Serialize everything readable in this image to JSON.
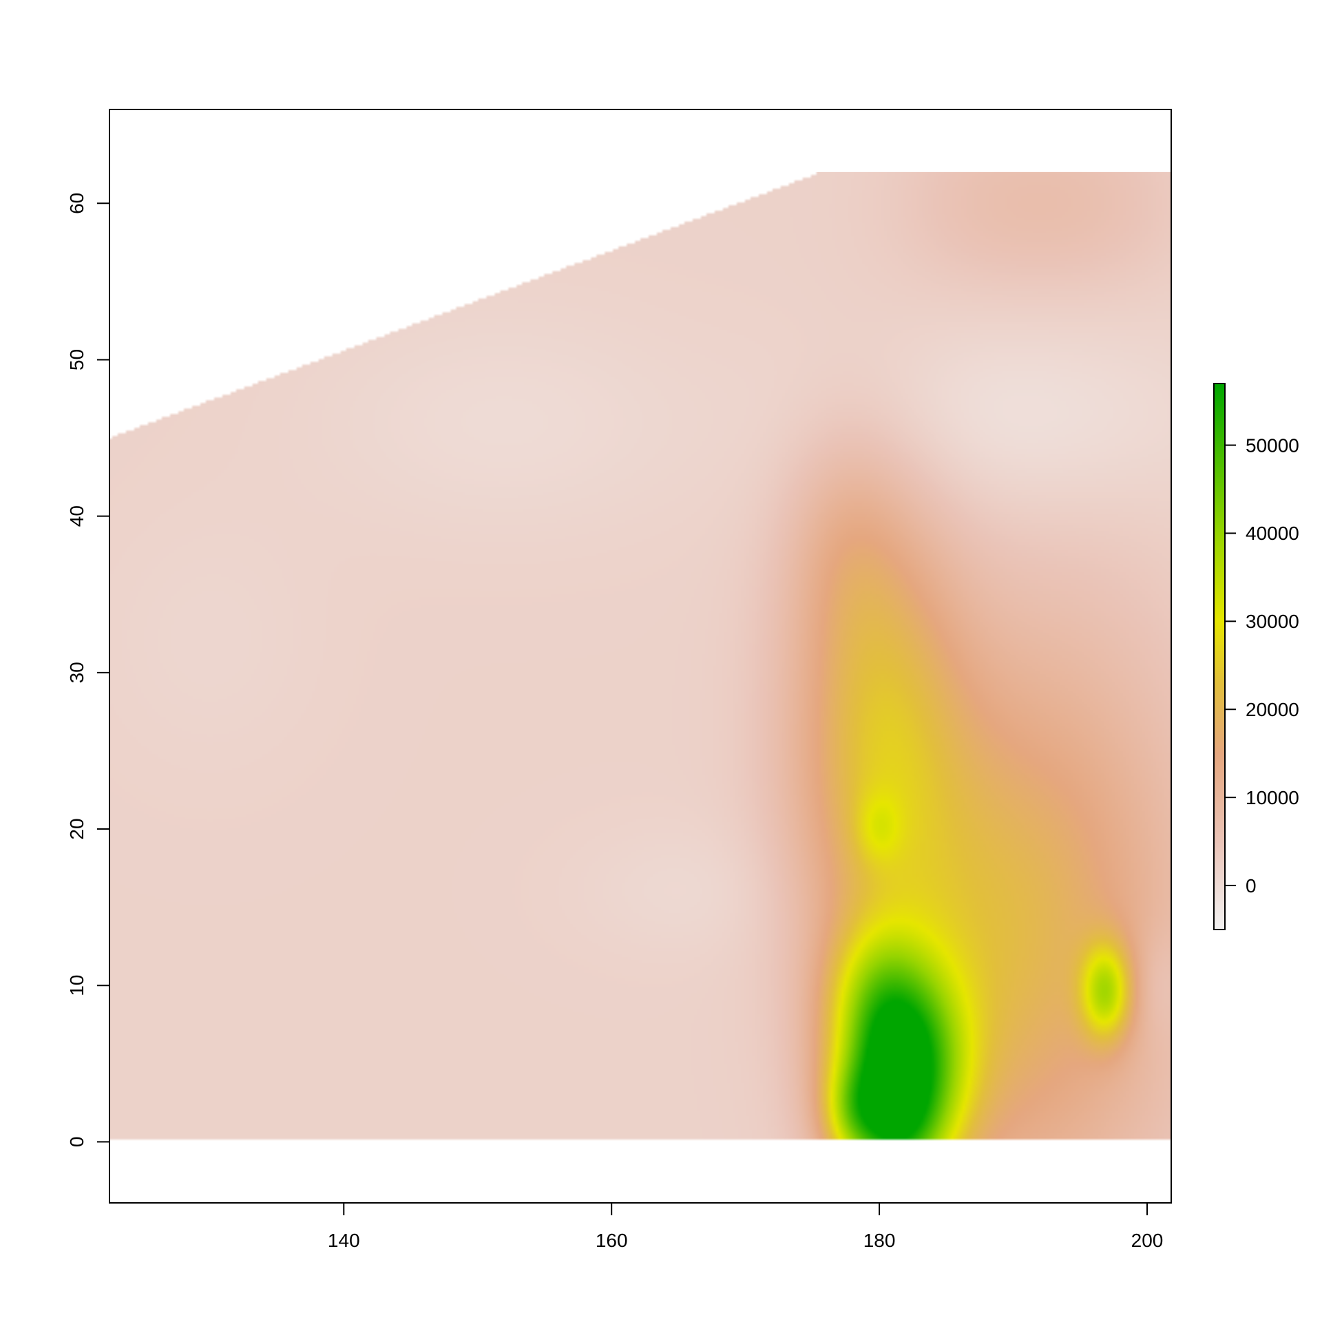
{
  "chart_data": {
    "type": "heatmap",
    "title": "",
    "xlabel": "",
    "ylabel": "",
    "xlim": [
      122.5,
      201.8
    ],
    "ylim": [
      -3.9,
      66
    ],
    "x_ticks": [
      140,
      160,
      180,
      200
    ],
    "y_ticks": [
      0,
      10,
      20,
      30,
      40,
      50,
      60
    ],
    "domain": {
      "x_range": [
        122.5,
        201.8
      ],
      "y_range": [
        0,
        62
      ],
      "upper_boundary": [
        [
          122.5,
          45
        ],
        [
          175.3,
          62
        ],
        [
          201.8,
          62
        ]
      ]
    },
    "value_range": [
      -5000,
      57000
    ],
    "colorbar": {
      "ticks": [
        0,
        10000,
        20000,
        30000,
        40000,
        50000
      ],
      "colors": [
        "#f2f2f2",
        "#eac4b8",
        "#e5a77f",
        "#e2bf3c",
        "#e6e600",
        "#96d400",
        "#00a600"
      ],
      "color_stops": [
        -5000,
        5000,
        15000,
        23000,
        30000,
        40000,
        57000
      ]
    },
    "base_value": 2000,
    "hotspots": [
      {
        "x": 181.5,
        "y": 4.5,
        "value": 55000,
        "sx": 3.2,
        "sy": 4.5
      },
      {
        "x": 179.5,
        "y": 10.0,
        "value": 9000,
        "sx": 2.5,
        "sy": 3
      },
      {
        "x": 197.0,
        "y": 9.5,
        "value": 24000,
        "sx": 1.3,
        "sy": 2.2
      },
      {
        "x": 180.0,
        "y": 20.0,
        "value": 7000,
        "sx": 1.2,
        "sy": 1.6
      },
      {
        "x": 180.0,
        "y": 26.0,
        "value": 19000,
        "sx": 4.5,
        "sy": 10
      },
      {
        "x": 185.5,
        "y": 12.0,
        "value": 10000,
        "sx": 6,
        "sy": 11
      },
      {
        "x": 193.5,
        "y": 14.0,
        "value": 13000,
        "sx": 7,
        "sy": 13
      },
      {
        "x": 177.5,
        "y": 38.0,
        "value": 5000,
        "sx": 3,
        "sy": 5
      },
      {
        "x": 188.0,
        "y": 60.0,
        "value": 3500,
        "sx": 5,
        "sy": 4
      },
      {
        "x": 196.0,
        "y": 60.0,
        "value": 3500,
        "sx": 5,
        "sy": 4
      },
      {
        "x": 152.0,
        "y": 46.0,
        "value": -2000,
        "sx": 10,
        "sy": 5
      },
      {
        "x": 190.0,
        "y": 46.0,
        "value": -3500,
        "sx": 10,
        "sy": 4.5
      },
      {
        "x": 130.0,
        "y": 32.0,
        "value": -1000,
        "sx": 6,
        "sy": 6
      },
      {
        "x": 166.0,
        "y": 16.0,
        "value": -1500,
        "sx": 6,
        "sy": 3
      },
      {
        "x": 201.0,
        "y": 10.0,
        "value": -3000,
        "sx": 1.2,
        "sy": 2.5
      },
      {
        "x": 181.0,
        "y": 0.0,
        "value": 15000,
        "sx": 2.5,
        "sy": 2.5
      },
      {
        "x": 178.0,
        "y": 2.0,
        "value": 12000,
        "sx": 1.5,
        "sy": 2
      }
    ]
  }
}
